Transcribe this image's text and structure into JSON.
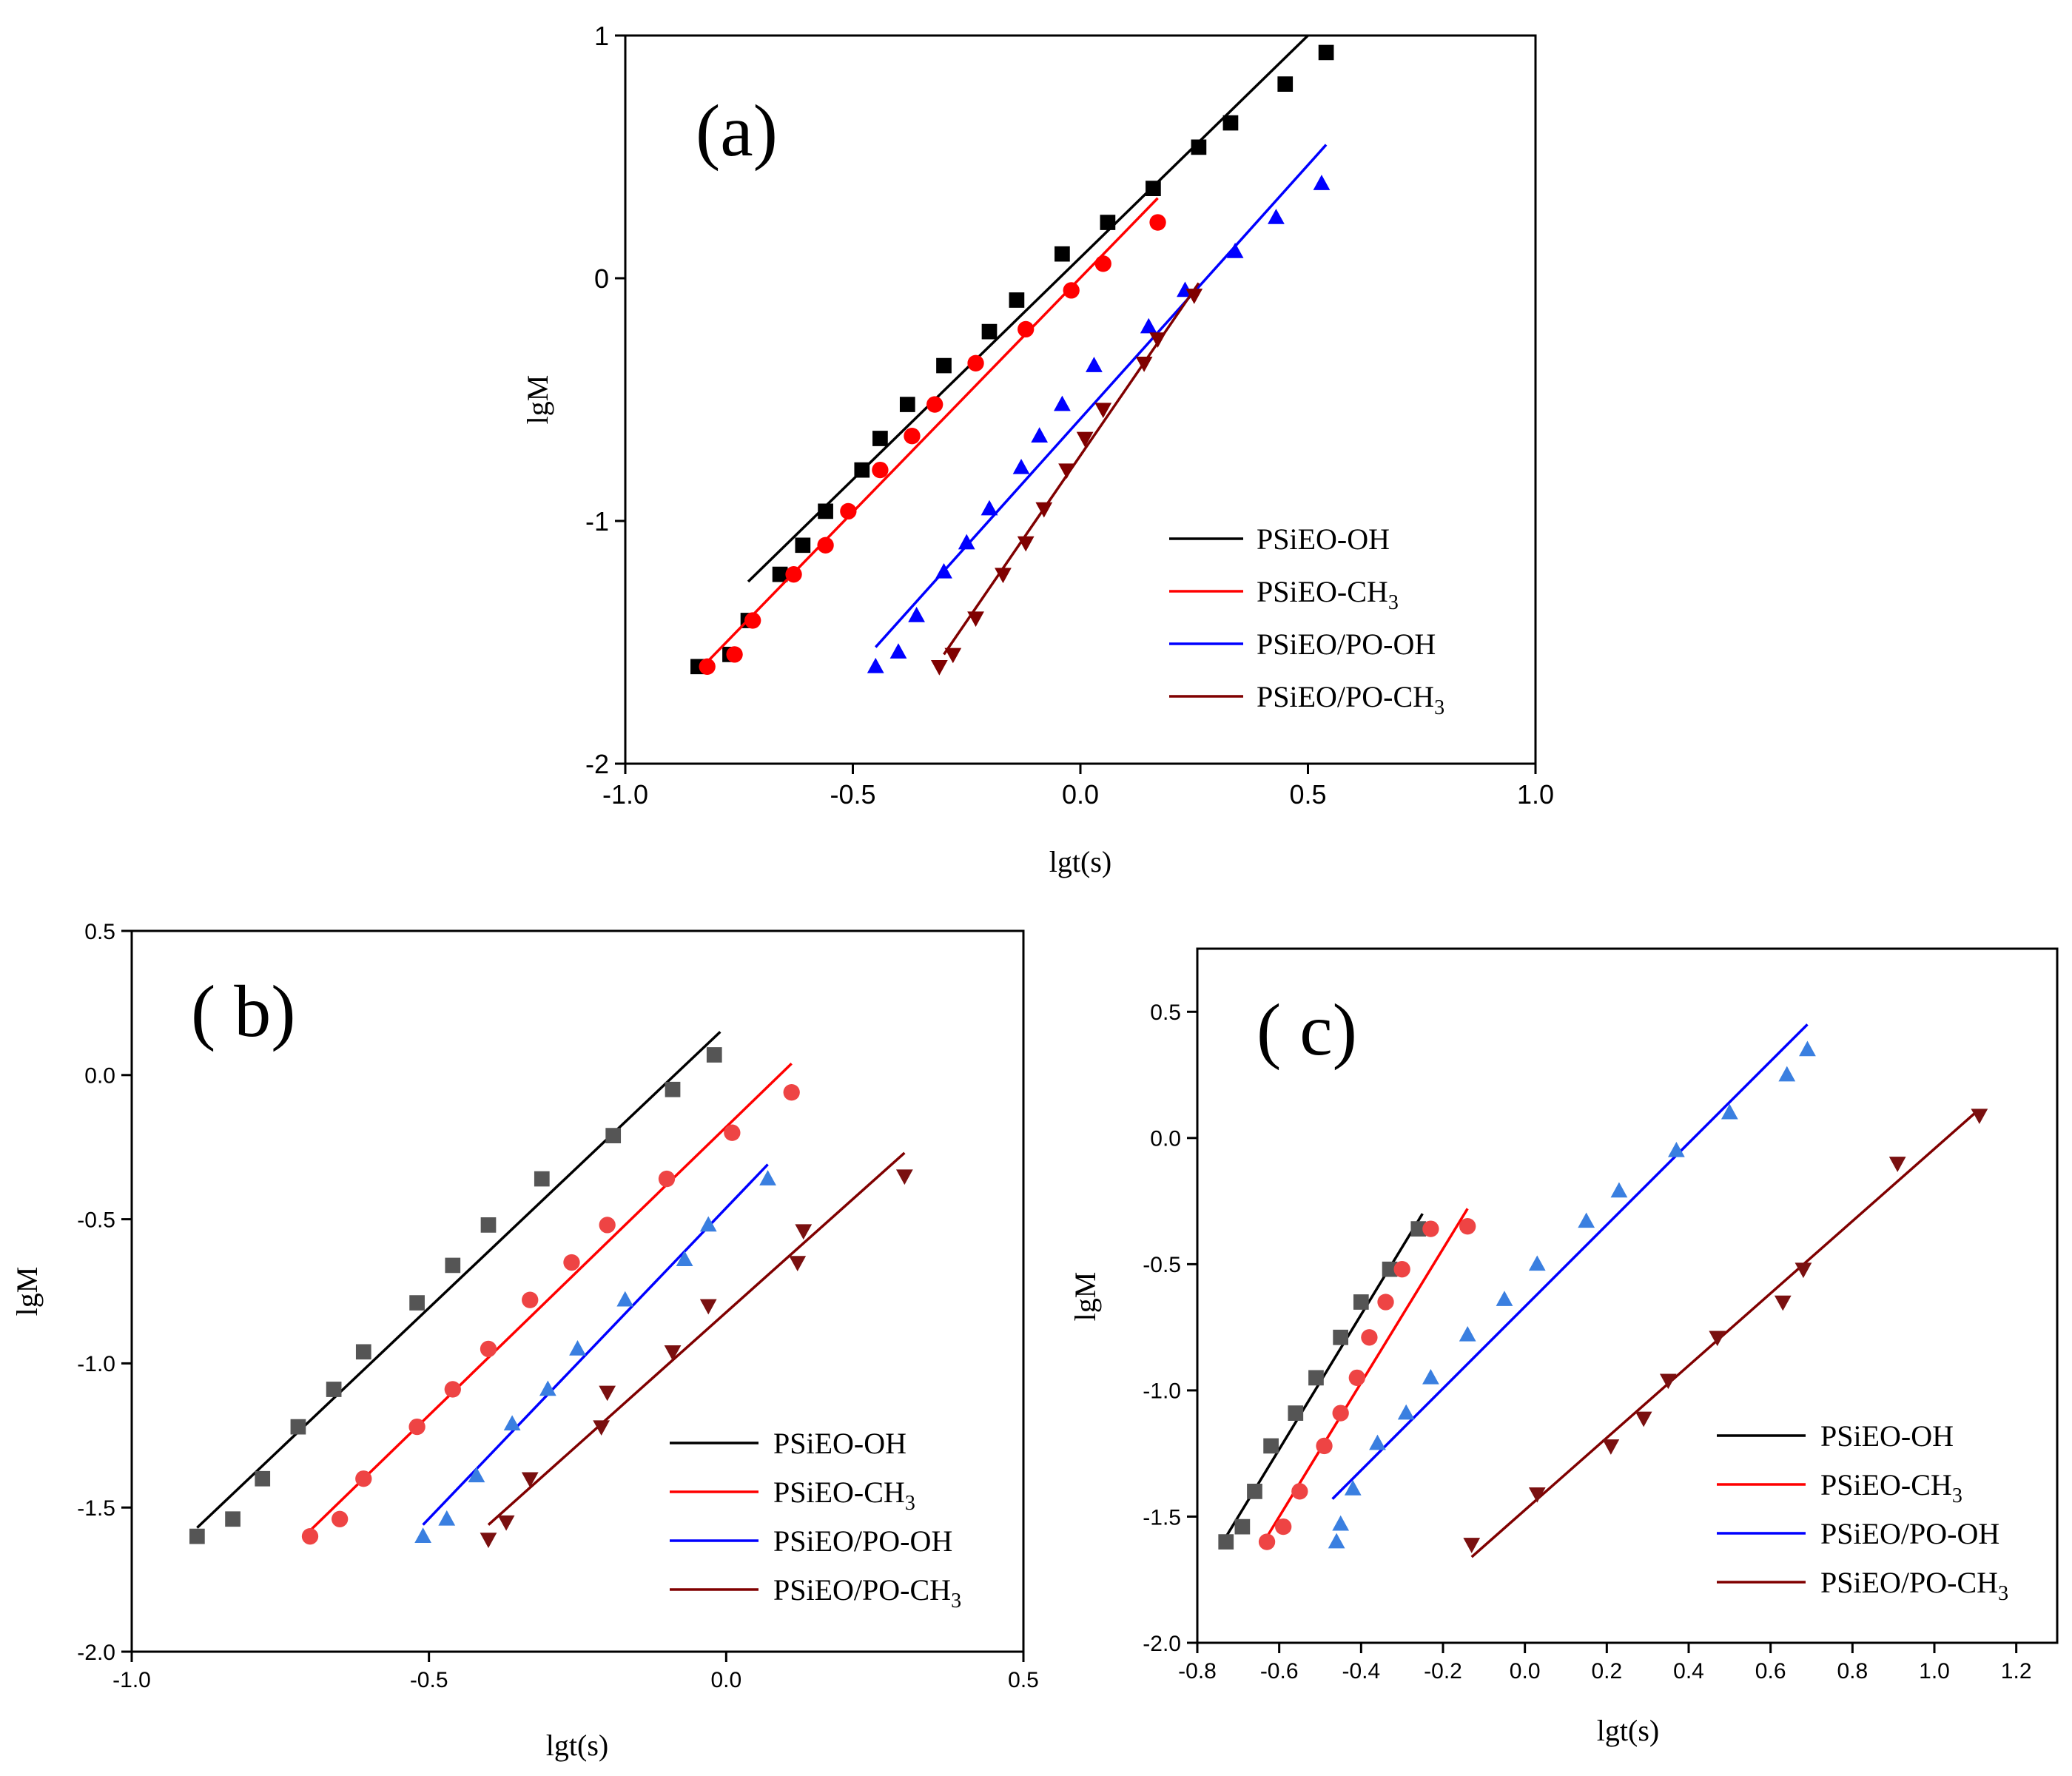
{
  "figure": {
    "series_names": [
      "PSiEO-OH",
      "PSiEO-CH3",
      "PSiEO/PO-OH",
      "PSiEO/PO-CH3"
    ]
  },
  "chart_data": [
    {
      "type": "scatter",
      "panel": "(a)",
      "title": "",
      "xlabel": "lgt(s)",
      "ylabel": "lgM",
      "xlim": [
        -1.0,
        1.0
      ],
      "ylim": [
        -2,
        1
      ],
      "xticks": [
        -1.0,
        -0.5,
        0.0,
        0.5,
        1.0
      ],
      "xtick_labels": [
        "-1.0",
        "-0.5",
        "0.0",
        "0.5",
        "1.0"
      ],
      "yticks": [
        -2,
        -1,
        0,
        1
      ],
      "ytick_labels": [
        "-2",
        "-1",
        "0",
        "1"
      ],
      "legend": "bottom-right",
      "series": [
        {
          "name": "PSiEO-OH",
          "label_main": "PSiEO-OH",
          "label_sub": "",
          "color": "#000000",
          "line_color": "#000000",
          "marker": "square",
          "x": [
            -0.84,
            -0.77,
            -0.73,
            -0.66,
            -0.61,
            -0.56,
            -0.48,
            -0.44,
            -0.38,
            -0.3,
            -0.2,
            -0.14,
            -0.04,
            0.06,
            0.16,
            0.26,
            0.33,
            0.45,
            0.54
          ],
          "y": [
            -1.6,
            -1.55,
            -1.41,
            -1.22,
            -1.1,
            -0.96,
            -0.79,
            -0.66,
            -0.52,
            -0.36,
            -0.22,
            -0.09,
            0.1,
            0.23,
            0.37,
            0.54,
            0.64,
            0.8,
            0.93
          ],
          "fit": {
            "x": [
              -0.73,
              0.5
            ],
            "y": [
              -1.25,
              1.0
            ]
          }
        },
        {
          "name": "PSiEO-CH3",
          "label_main": "PSiEO-CH",
          "label_sub": "3",
          "color": "#ff0000",
          "line_color": "#ff0000",
          "marker": "circle",
          "x": [
            -0.82,
            -0.76,
            -0.72,
            -0.63,
            -0.56,
            -0.51,
            -0.44,
            -0.37,
            -0.32,
            -0.23,
            -0.12,
            -0.02,
            0.05,
            0.17
          ],
          "y": [
            -1.6,
            -1.55,
            -1.41,
            -1.22,
            -1.1,
            -0.96,
            -0.79,
            -0.65,
            -0.52,
            -0.35,
            -0.21,
            -0.05,
            0.06,
            0.23
          ],
          "fit": {
            "x": [
              -0.83,
              0.17
            ],
            "y": [
              -1.6,
              0.33
            ]
          }
        },
        {
          "name": "PSiEO/PO-OH",
          "label_main": "PSiEO/PO-OH",
          "label_sub": "",
          "color": "#0000ff",
          "line_color": "#0000ff",
          "marker": "triangle-up",
          "x": [
            -0.45,
            -0.4,
            -0.36,
            -0.3,
            -0.25,
            -0.2,
            -0.13,
            -0.09,
            -0.04,
            0.03,
            0.15,
            0.23,
            0.34,
            0.43,
            0.53
          ],
          "y": [
            -1.6,
            -1.54,
            -1.39,
            -1.21,
            -1.09,
            -0.95,
            -0.78,
            -0.65,
            -0.52,
            -0.36,
            -0.2,
            -0.05,
            0.11,
            0.25,
            0.39
          ],
          "fit": {
            "x": [
              -0.45,
              0.54
            ],
            "y": [
              -1.52,
              0.55
            ]
          }
        },
        {
          "name": "PSiEO/PO-CH3",
          "label_main": "PSiEO/PO-CH",
          "label_sub": "3",
          "color": "#800000",
          "line_color": "#800000",
          "marker": "triangle-down",
          "x": [
            -0.31,
            -0.28,
            -0.23,
            -0.17,
            -0.12,
            -0.08,
            -0.03,
            0.01,
            0.05,
            0.14,
            0.17,
            0.25
          ],
          "y": [
            -1.6,
            -1.55,
            -1.4,
            -1.22,
            -1.09,
            -0.95,
            -0.79,
            -0.66,
            -0.54,
            -0.35,
            -0.25,
            -0.07
          ],
          "fit": {
            "x": [
              -0.3,
              0.26
            ],
            "y": [
              -1.55,
              -0.02
            ]
          }
        }
      ],
      "tag": "(a)"
    },
    {
      "type": "scatter",
      "panel": "(b)",
      "title": "",
      "xlabel": "lgt(s)",
      "ylabel": "lgM",
      "xlim": [
        -1.0,
        0.5
      ],
      "ylim": [
        -2.0,
        0.5
      ],
      "xticks": [
        -1.0,
        -0.5,
        0.0,
        0.5
      ],
      "xtick_labels": [
        "-1.0",
        "-0.5",
        "0.0",
        "0.5"
      ],
      "yticks": [
        -2.0,
        -1.5,
        -1.0,
        -0.5,
        0.0,
        0.5
      ],
      "ytick_labels": [
        "-2.0",
        "-1.5",
        "-1.0",
        "-0.5",
        "0.0",
        "0.5"
      ],
      "legend": "bottom-right",
      "series": [
        {
          "name": "PSiEO-OH",
          "label_main": "PSiEO-OH",
          "label_sub": "",
          "color": "#555555",
          "line_color": "#000000",
          "marker": "square",
          "x": [
            -0.89,
            -0.83,
            -0.78,
            -0.72,
            -0.66,
            -0.61,
            -0.52,
            -0.46,
            -0.4,
            -0.31,
            -0.19,
            -0.09,
            -0.02
          ],
          "y": [
            -1.6,
            -1.54,
            -1.4,
            -1.22,
            -1.09,
            -0.96,
            -0.79,
            -0.66,
            -0.52,
            -0.36,
            -0.21,
            -0.05,
            0.07
          ],
          "fit": {
            "x": [
              -0.89,
              -0.01
            ],
            "y": [
              -1.57,
              0.15
            ]
          }
        },
        {
          "name": "PSiEO-CH3",
          "label_main": "PSiEO-CH",
          "label_sub": "3",
          "color": "#ee4444",
          "line_color": "#ff0000",
          "marker": "circle",
          "x": [
            -0.7,
            -0.65,
            -0.61,
            -0.52,
            -0.46,
            -0.4,
            -0.33,
            -0.26,
            -0.2,
            -0.1,
            0.01,
            0.11
          ],
          "y": [
            -1.6,
            -1.54,
            -1.4,
            -1.22,
            -1.09,
            -0.95,
            -0.78,
            -0.65,
            -0.52,
            -0.36,
            -0.2,
            -0.06
          ],
          "fit": {
            "x": [
              -0.7,
              0.11
            ],
            "y": [
              -1.58,
              0.04
            ]
          }
        },
        {
          "name": "PSiEO/PO-OH",
          "label_main": "PSiEO/PO-OH",
          "label_sub": "",
          "color": "#3a7fe0",
          "line_color": "#0000ff",
          "marker": "triangle-up",
          "x": [
            -0.51,
            -0.47,
            -0.42,
            -0.36,
            -0.3,
            -0.25,
            -0.17,
            -0.07,
            -0.03,
            0.07
          ],
          "y": [
            -1.6,
            -1.54,
            -1.39,
            -1.21,
            -1.09,
            -0.95,
            -0.78,
            -0.64,
            -0.52,
            -0.36
          ],
          "fit": {
            "x": [
              -0.51,
              0.07
            ],
            "y": [
              -1.56,
              -0.31
            ]
          }
        },
        {
          "name": "PSiEO/PO-CH3",
          "label_main": "PSiEO/PO-CH",
          "label_sub": "3",
          "color": "#7a1010",
          "line_color": "#800000",
          "marker": "triangle-down",
          "x": [
            -0.4,
            -0.37,
            -0.33,
            -0.2,
            -0.21,
            -0.09,
            -0.03,
            0.12,
            0.13,
            0.3
          ],
          "y": [
            -1.61,
            -1.55,
            -1.4,
            -1.1,
            -1.22,
            -0.96,
            -0.8,
            -0.65,
            -0.54,
            -0.35
          ],
          "fit": {
            "x": [
              -0.4,
              0.3
            ],
            "y": [
              -1.56,
              -0.27
            ]
          }
        }
      ],
      "tag": "( b)"
    },
    {
      "type": "scatter",
      "panel": "(c)",
      "title": "",
      "xlabel": "lgt(s)",
      "ylabel": "lgM",
      "xlim": [
        -0.8,
        1.3
      ],
      "ylim": [
        -2.0,
        0.75
      ],
      "xticks": [
        -0.8,
        -0.6,
        -0.4,
        -0.2,
        0.0,
        0.2,
        0.4,
        0.6,
        0.8,
        1.0,
        1.2
      ],
      "xtick_labels": [
        "-0.8",
        "-0.6",
        "-0.4",
        "-0.2",
        "0.0",
        "0.2",
        "0.4",
        "0.6",
        "0.8",
        "1.0",
        "1.2"
      ],
      "yticks": [
        -2.0,
        -1.5,
        -1.0,
        -0.5,
        0.0,
        0.5
      ],
      "ytick_labels": [
        "-2.0",
        "-1.5",
        "-1.0",
        "-0.5",
        "0.0",
        "0.5"
      ],
      "legend": "bottom-right",
      "series": [
        {
          "name": "PSiEO-OH",
          "label_main": "PSiEO-OH",
          "label_sub": "",
          "color": "#555555",
          "line_color": "#000000",
          "marker": "square",
          "x": [
            -0.73,
            -0.69,
            -0.66,
            -0.62,
            -0.56,
            -0.51,
            -0.45,
            -0.4,
            -0.33,
            -0.26
          ],
          "y": [
            -1.6,
            -1.54,
            -1.4,
            -1.22,
            -1.09,
            -0.95,
            -0.79,
            -0.65,
            -0.52,
            -0.36
          ],
          "fit": {
            "x": [
              -0.73,
              -0.25
            ],
            "y": [
              -1.58,
              -0.3
            ]
          }
        },
        {
          "name": "PSiEO-CH3",
          "label_main": "PSiEO-CH",
          "label_sub": "3",
          "color": "#ee4444",
          "line_color": "#ff0000",
          "marker": "circle",
          "x": [
            -0.63,
            -0.59,
            -0.55,
            -0.49,
            -0.45,
            -0.41,
            -0.38,
            -0.34,
            -0.3,
            -0.23,
            -0.14
          ],
          "y": [
            -1.6,
            -1.54,
            -1.4,
            -1.22,
            -1.09,
            -0.95,
            -0.79,
            -0.65,
            -0.52,
            -0.36,
            -0.35
          ],
          "fit": {
            "x": [
              -0.63,
              -0.14
            ],
            "y": [
              -1.58,
              -0.28
            ]
          }
        },
        {
          "name": "PSiEO/PO-OH",
          "label_main": "PSiEO/PO-OH",
          "label_sub": "",
          "color": "#3a7fe0",
          "line_color": "#0000ff",
          "marker": "triangle-up",
          "x": [
            -0.46,
            -0.45,
            -0.42,
            -0.36,
            -0.29,
            -0.23,
            -0.14,
            -0.05,
            0.03,
            0.15,
            0.23,
            0.37,
            0.5,
            0.64,
            0.69
          ],
          "y": [
            -1.6,
            -1.53,
            -1.39,
            -1.21,
            -1.09,
            -0.95,
            -0.78,
            -0.64,
            -0.5,
            -0.33,
            -0.21,
            -0.05,
            0.1,
            0.25,
            0.35
          ],
          "fit": {
            "x": [
              -0.47,
              0.69
            ],
            "y": [
              -1.43,
              0.45
            ]
          }
        },
        {
          "name": "PSiEO/PO-CH3",
          "label_main": "PSiEO/PO-CH",
          "label_sub": "3",
          "color": "#7a1010",
          "line_color": "#800000",
          "marker": "triangle-down",
          "x": [
            -0.13,
            0.03,
            0.21,
            0.29,
            0.35,
            0.47,
            0.63,
            0.68,
            0.91,
            1.11
          ],
          "y": [
            -1.61,
            -1.41,
            -1.22,
            -1.11,
            -0.96,
            -0.79,
            -0.65,
            -0.52,
            -0.1,
            0.09
          ],
          "fit": {
            "x": [
              -0.13,
              1.1
            ],
            "y": [
              -1.66,
              0.1
            ]
          }
        }
      ],
      "tag": "( c)"
    }
  ]
}
